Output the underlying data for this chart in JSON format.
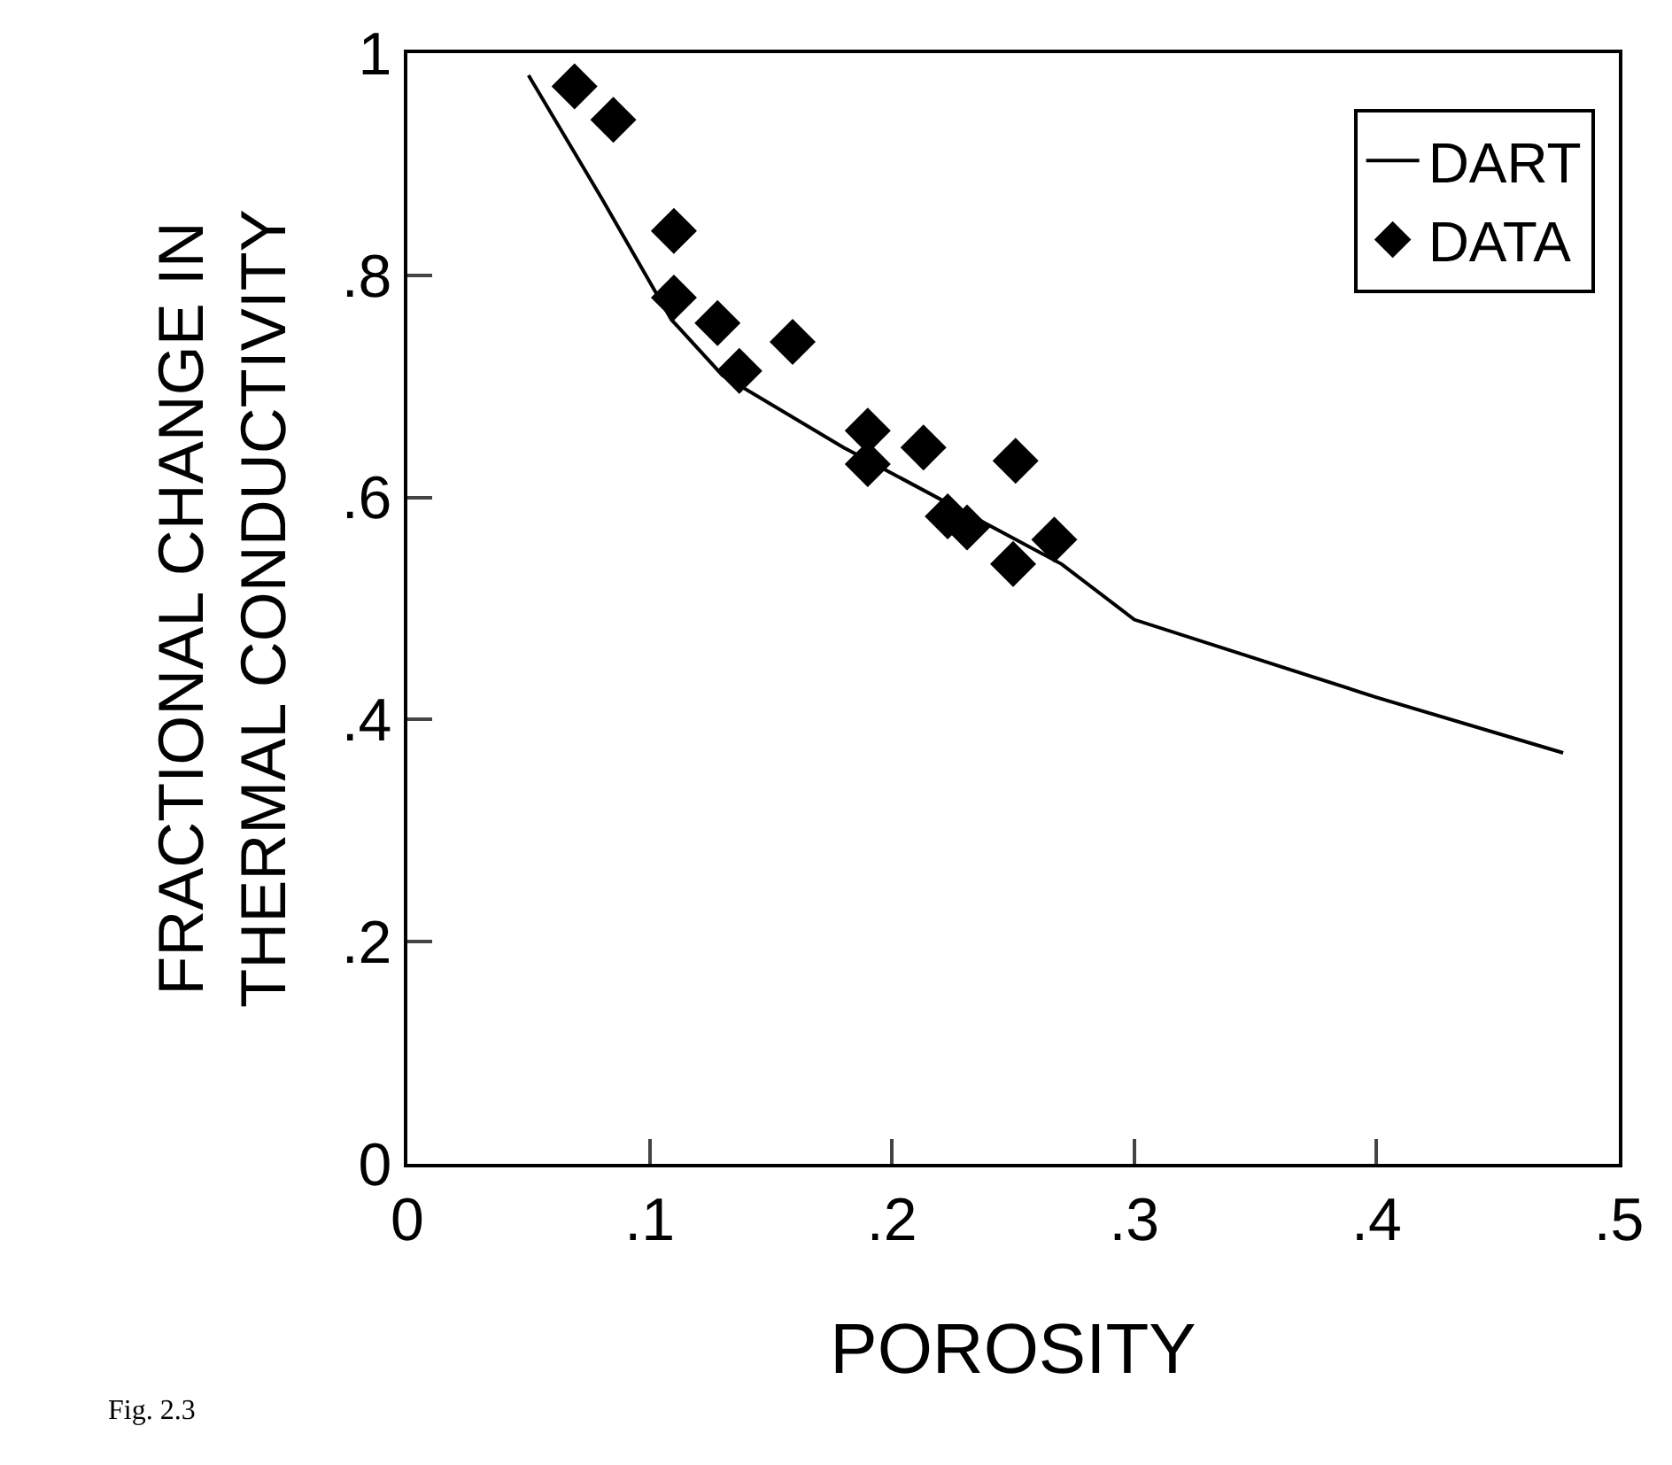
{
  "chart_data": {
    "type": "scatter",
    "xlabel": "POROSITY",
    "ylabel": "FRACTIONAL CHANGE IN\nTHERMAL CONDUCTIVITY",
    "annotations": [
      "Fig. 2.3"
    ],
    "series": [
      {
        "name": "DART",
        "type": "line",
        "color": "#000000",
        "marker": "none",
        "x": [
          0.05,
          0.08,
          0.109,
          0.13,
          0.18,
          0.27,
          0.3,
          0.4,
          0.477
        ],
        "values": [
          0.98,
          0.87,
          0.76,
          0.71,
          0.645,
          0.54,
          0.49,
          0.42,
          0.37
        ]
      },
      {
        "name": "DATA",
        "color": "#000000",
        "marker": "diamond",
        "x": [
          0.069,
          0.085,
          0.11,
          0.11,
          0.128,
          0.137,
          0.159,
          0.19,
          0.19,
          0.213,
          0.223,
          0.231,
          0.251,
          0.25,
          0.267
        ],
        "values": [
          0.97,
          0.94,
          0.84,
          0.78,
          0.757,
          0.714,
          0.74,
          0.66,
          0.63,
          0.645,
          0.583,
          0.573,
          0.633,
          0.54,
          0.562
        ]
      }
    ],
    "xlim": [
      0,
      0.5
    ],
    "xticks": [
      {
        "value": 0,
        "label": "0"
      },
      {
        "value": 0.1,
        "label": ".1"
      },
      {
        "value": 0.2,
        "label": ".2"
      },
      {
        "value": 0.3,
        "label": ".3"
      },
      {
        "value": 0.4,
        "label": ".4"
      },
      {
        "value": 0.5,
        "label": ".5"
      }
    ],
    "ylim": [
      0,
      1
    ],
    "yticks": [
      {
        "value": 0,
        "label": "0"
      },
      {
        "value": 0.2,
        "label": ".2"
      },
      {
        "value": 0.4,
        "label": ".4"
      },
      {
        "value": 0.6,
        "label": ".6"
      },
      {
        "value": 0.8,
        "label": ".8"
      },
      {
        "value": 1,
        "label": "1"
      }
    ],
    "legend": "top right"
  }
}
